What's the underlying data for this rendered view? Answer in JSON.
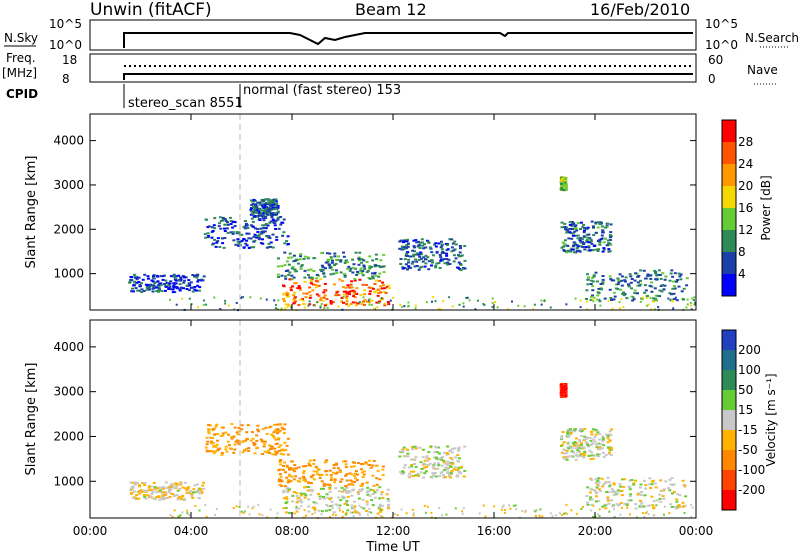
{
  "header": {
    "station": "Unwin (fitACF)",
    "beam": "Beam 12",
    "date": "16/Feb/2010"
  },
  "status_panels": {
    "nsky_label": "N.Sky",
    "nsearch_label": "N.Search",
    "noise_ticks": [
      "10^5",
      "10^0"
    ],
    "freq_label": "Freq.",
    "freq_unit": "[MHz]",
    "freq_ticks": [
      "18",
      "8"
    ],
    "nave_label": "Nave",
    "nave_ticks": [
      "60",
      "0"
    ],
    "cpid_label": "CPID",
    "cpid_entries": [
      "stereo_scan 8551",
      "normal (fast stereo) 153"
    ]
  },
  "x_axis": {
    "label": "Time UT",
    "ticks": [
      "00:00",
      "04:00",
      "08:00",
      "12:00",
      "16:00",
      "20:00",
      "00:00"
    ]
  },
  "y_axis": {
    "label": "Slant Range [km]",
    "ticks": [
      "1000",
      "2000",
      "3000",
      "4000"
    ]
  },
  "power_colorbar": {
    "label": "Power [dB]",
    "ticks": [
      "4",
      "8",
      "12",
      "16",
      "20",
      "24",
      "28"
    ],
    "colors": [
      "#0000ff",
      "#1a3fa8",
      "#2e8b57",
      "#66cc33",
      "#f5d800",
      "#ff9900",
      "#ff5500",
      "#ff0000"
    ]
  },
  "velocity_colorbar": {
    "label": "Velocity [m s⁻¹]",
    "ticks": [
      "200",
      "100",
      "50",
      "15",
      "-15",
      "-50",
      "-100",
      "-200"
    ],
    "colors": [
      "#2040c0",
      "#1e6e8c",
      "#2e8b57",
      "#66cc33",
      "#c8c8c8",
      "#ffb300",
      "#ff8800",
      "#ff4400",
      "#ff0000"
    ]
  },
  "chart_data": [
    {
      "type": "heatmap",
      "title": "Power",
      "xlabel": "Time UT",
      "ylabel": "Slant Range [km]",
      "xlim": [
        0,
        24
      ],
      "ylim": [
        180,
        4600
      ],
      "colorbar": "Power [dB]",
      "regions": [
        {
          "t": [
            7.6,
            11.8
          ],
          "r": [
            300,
            900
          ],
          "value": 22
        },
        {
          "t": [
            7.4,
            11.6
          ],
          "r": [
            900,
            1500
          ],
          "value": 10
        },
        {
          "t": [
            4.5,
            7.8
          ],
          "r": [
            1600,
            2300
          ],
          "value": 6
        },
        {
          "t": [
            6.3,
            7.4
          ],
          "r": [
            2300,
            2700
          ],
          "value": 7
        },
        {
          "t": [
            1.5,
            4.5
          ],
          "r": [
            600,
            1000
          ],
          "value": 5
        },
        {
          "t": [
            12.2,
            14.8
          ],
          "r": [
            1100,
            1800
          ],
          "value": 7
        },
        {
          "t": [
            18.6,
            20.6
          ],
          "r": [
            1500,
            2200
          ],
          "value": 8
        },
        {
          "t": [
            19.6,
            23.6
          ],
          "r": [
            400,
            1100
          ],
          "value": 9
        },
        {
          "t": [
            18.6,
            18.8
          ],
          "r": [
            2900,
            3200
          ],
          "value": 14
        }
      ]
    },
    {
      "type": "heatmap",
      "title": "Velocity",
      "xlabel": "Time UT",
      "ylabel": "Slant Range [km]",
      "xlim": [
        0,
        24
      ],
      "ylim": [
        180,
        4600
      ],
      "colorbar": "Velocity [m s⁻¹]",
      "regions": [
        {
          "t": [
            7.6,
            11.8
          ],
          "r": [
            300,
            900
          ],
          "value": 0
        },
        {
          "t": [
            7.4,
            11.6
          ],
          "r": [
            900,
            1500
          ],
          "value": -60
        },
        {
          "t": [
            4.5,
            7.8
          ],
          "r": [
            1600,
            2300
          ],
          "value": -50
        },
        {
          "t": [
            1.5,
            4.5
          ],
          "r": [
            600,
            1000
          ],
          "value": -10
        },
        {
          "t": [
            12.2,
            14.8
          ],
          "r": [
            1100,
            1800
          ],
          "value": 0
        },
        {
          "t": [
            18.6,
            20.6
          ],
          "r": [
            1500,
            2200
          ],
          "value": 0
        },
        {
          "t": [
            19.6,
            23.6
          ],
          "r": [
            400,
            1100
          ],
          "value": 0
        },
        {
          "t": [
            18.6,
            18.8
          ],
          "r": [
            2900,
            3200
          ],
          "value": -200
        }
      ]
    }
  ]
}
